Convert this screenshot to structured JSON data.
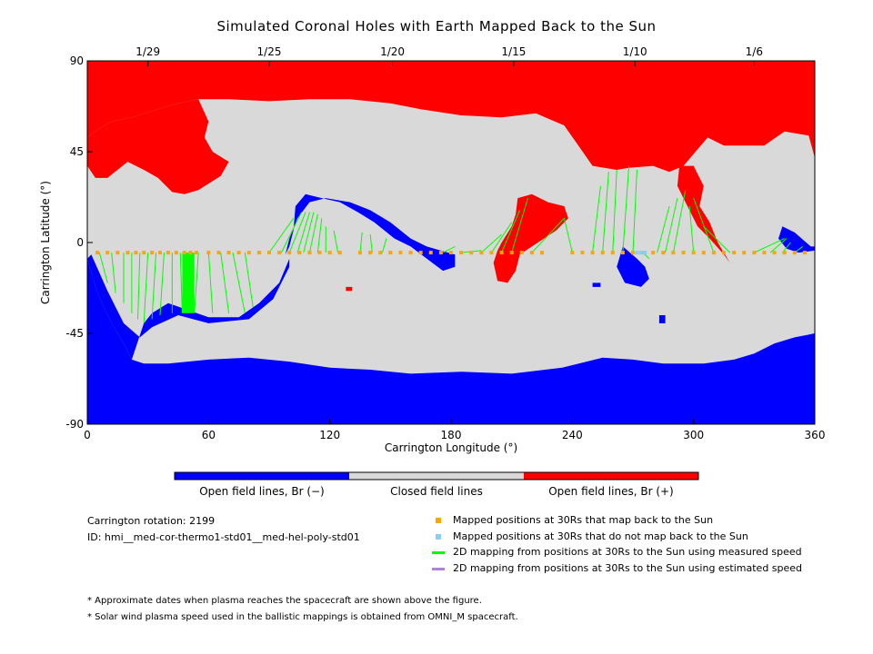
{
  "chart_data": {
    "type": "map",
    "title": "Simulated Coronal Holes with Earth Mapped Back to the Sun",
    "xlabel": "Carrington Longitude (°)",
    "ylabel": "Carrington Latitude (°)",
    "xlim": [
      0,
      360
    ],
    "ylim": [
      -90,
      90
    ],
    "x_ticks": [
      "0",
      "60",
      "120",
      "180",
      "240",
      "300",
      "360"
    ],
    "y_ticks": [
      "90",
      "45",
      "0",
      "-45",
      "-90"
    ],
    "top_axis_dates": [
      {
        "label": "1/29",
        "lon": 30
      },
      {
        "label": "1/25",
        "lon": 90
      },
      {
        "label": "1/20",
        "lon": 151
      },
      {
        "label": "1/15",
        "lon": 211
      },
      {
        "label": "1/10",
        "lon": 271
      },
      {
        "label": "1/6",
        "lon": 330
      }
    ],
    "colors": {
      "open_negative": "#0000ff",
      "closed": "#d9d9d9",
      "open_positive": "#ff0000",
      "mapped": "#ffa500",
      "not_mapped": "#87cefa",
      "measured_speed": "#00ff00",
      "estimated_speed": "#b07fe0"
    },
    "regions": {
      "north_positive_polar": [
        [
          0,
          90
        ],
        [
          360,
          90
        ],
        [
          360,
          42
        ],
        [
          357,
          53
        ],
        [
          345,
          55
        ],
        [
          335,
          48
        ],
        [
          315,
          48
        ],
        [
          307,
          52
        ],
        [
          295,
          38
        ],
        [
          288,
          35
        ],
        [
          280,
          38
        ],
        [
          268,
          37
        ],
        [
          262,
          36
        ],
        [
          250,
          38
        ],
        [
          243,
          48
        ],
        [
          236,
          58
        ],
        [
          222,
          64
        ],
        [
          205,
          62
        ],
        [
          185,
          63
        ],
        [
          165,
          66
        ],
        [
          150,
          69
        ],
        [
          130,
          71
        ],
        [
          110,
          71
        ],
        [
          90,
          70
        ],
        [
          70,
          71
        ],
        [
          55,
          71
        ],
        [
          45,
          69
        ],
        [
          35,
          66
        ],
        [
          22,
          62
        ],
        [
          12,
          60
        ],
        [
          5,
          56
        ],
        [
          0,
          52
        ]
      ],
      "positive_extension_west": [
        [
          0,
          52
        ],
        [
          5,
          56
        ],
        [
          12,
          60
        ],
        [
          22,
          62
        ],
        [
          35,
          66
        ],
        [
          45,
          69
        ],
        [
          55,
          71
        ],
        [
          60,
          60
        ],
        [
          58,
          52
        ],
        [
          62,
          45
        ],
        [
          70,
          40
        ],
        [
          66,
          33
        ],
        [
          55,
          26
        ],
        [
          48,
          24
        ],
        [
          42,
          25
        ],
        [
          35,
          32
        ],
        [
          28,
          36
        ],
        [
          20,
          40
        ],
        [
          15,
          36
        ],
        [
          10,
          32
        ],
        [
          4,
          32
        ],
        [
          0,
          38
        ]
      ],
      "positive_extension_east": [
        [
          293,
          38
        ],
        [
          300,
          38
        ],
        [
          305,
          28
        ],
        [
          303,
          18
        ],
        [
          308,
          10
        ],
        [
          312,
          0
        ],
        [
          318,
          -10
        ],
        [
          315,
          -6
        ],
        [
          308,
          2
        ],
        [
          302,
          8
        ],
        [
          296,
          20
        ],
        [
          292,
          28
        ]
      ],
      "equatorial_positive": [
        [
          213,
          22
        ],
        [
          220,
          24
        ],
        [
          228,
          20
        ],
        [
          236,
          18
        ],
        [
          238,
          12
        ],
        [
          232,
          6
        ],
        [
          226,
          2
        ],
        [
          220,
          -2
        ],
        [
          214,
          -6
        ],
        [
          212,
          -14
        ],
        [
          208,
          -20
        ],
        [
          203,
          -19
        ],
        [
          201,
          -10
        ],
        [
          203,
          -4
        ],
        [
          205,
          0
        ],
        [
          210,
          8
        ],
        [
          212,
          14
        ]
      ],
      "south_negative_polar": [
        [
          0,
          -90
        ],
        [
          360,
          -90
        ],
        [
          360,
          -45
        ],
        [
          350,
          -47
        ],
        [
          340,
          -50
        ],
        [
          330,
          -55
        ],
        [
          320,
          -58
        ],
        [
          305,
          -60
        ],
        [
          285,
          -60
        ],
        [
          270,
          -58
        ],
        [
          255,
          -57
        ],
        [
          235,
          -62
        ],
        [
          210,
          -65
        ],
        [
          185,
          -64
        ],
        [
          160,
          -65
        ],
        [
          140,
          -63
        ],
        [
          120,
          -62
        ],
        [
          100,
          -59
        ],
        [
          80,
          -57
        ],
        [
          60,
          -58
        ],
        [
          40,
          -60
        ],
        [
          28,
          -60
        ],
        [
          22,
          -58
        ],
        [
          18,
          -50
        ],
        [
          12,
          -40
        ],
        [
          5,
          -25
        ],
        [
          0,
          -8
        ]
      ],
      "negative_southwest_arm": [
        [
          0,
          -8
        ],
        [
          5,
          -25
        ],
        [
          12,
          -40
        ],
        [
          18,
          -50
        ],
        [
          22,
          -58
        ],
        [
          28,
          -40
        ],
        [
          32,
          -35
        ],
        [
          40,
          -30
        ],
        [
          60,
          -37
        ],
        [
          75,
          -37
        ],
        [
          85,
          -30
        ],
        [
          95,
          -20
        ],
        [
          100,
          -8
        ],
        [
          100,
          -12
        ],
        [
          92,
          -28
        ],
        [
          80,
          -38
        ],
        [
          60,
          -40
        ],
        [
          45,
          -36
        ],
        [
          32,
          -42
        ],
        [
          26,
          -47
        ],
        [
          18,
          -40
        ],
        [
          10,
          -24
        ],
        [
          6,
          -15
        ],
        [
          2,
          -6
        ]
      ],
      "negative_central_band": [
        [
          98,
          -6
        ],
        [
          100,
          -2
        ],
        [
          102,
          6
        ],
        [
          103,
          18
        ],
        [
          108,
          24
        ],
        [
          116,
          22
        ],
        [
          125,
          20
        ],
        [
          134,
          15
        ],
        [
          142,
          10
        ],
        [
          152,
          2
        ],
        [
          160,
          -2
        ],
        [
          168,
          -8
        ],
        [
          176,
          -14
        ],
        [
          182,
          -12
        ],
        [
          182,
          -6
        ],
        [
          175,
          -4
        ],
        [
          168,
          -2
        ],
        [
          160,
          2
        ],
        [
          150,
          10
        ],
        [
          140,
          16
        ],
        [
          130,
          20
        ],
        [
          118,
          22
        ],
        [
          110,
          20
        ],
        [
          104,
          12
        ],
        [
          100,
          2
        ]
      ],
      "negative_east_spot": [
        [
          265,
          -2
        ],
        [
          272,
          -8
        ],
        [
          276,
          -12
        ],
        [
          278,
          -18
        ],
        [
          274,
          -22
        ],
        [
          266,
          -20
        ],
        [
          262,
          -12
        ]
      ],
      "negative_east_edge": [
        [
          344,
          8
        ],
        [
          350,
          5
        ],
        [
          358,
          -2
        ],
        [
          360,
          -2
        ],
        [
          360,
          -4
        ],
        [
          352,
          -5
        ],
        [
          346,
          -3
        ],
        [
          342,
          2
        ]
      ],
      "negative_small_1": [
        [
          283,
          -36
        ],
        [
          286,
          -36
        ],
        [
          286,
          -40
        ],
        [
          283,
          -40
        ]
      ],
      "negative_small_2": [
        [
          250,
          -20
        ],
        [
          254,
          -20
        ],
        [
          254,
          -22
        ],
        [
          250,
          -22
        ]
      ],
      "positive_small": [
        [
          128,
          -22
        ],
        [
          131,
          -22
        ],
        [
          131,
          -24
        ],
        [
          128,
          -24
        ]
      ]
    },
    "mapped_positions_lat": -5,
    "mapped_points_lon": [
      5,
      10,
      15,
      20,
      24,
      28,
      32,
      36,
      40,
      44,
      48,
      51,
      54,
      60,
      65,
      70,
      75,
      80,
      85,
      90,
      95,
      100,
      105,
      110,
      115,
      120,
      125,
      135,
      140,
      145,
      150,
      155,
      160,
      165,
      170,
      175,
      180,
      185,
      190,
      195,
      200,
      205,
      210,
      215,
      220,
      225,
      240,
      245,
      250,
      255,
      260,
      265,
      270,
      275,
      280,
      285,
      290,
      295,
      300,
      305,
      310,
      315,
      320,
      325,
      330,
      335,
      340,
      345,
      350,
      355
    ],
    "not_mapped_points_lon": [
      272,
      274,
      276
    ],
    "fieldline_mappings": [
      {
        "from": 6,
        "to": [
          10,
          -20
        ]
      },
      {
        "from": 12,
        "to": [
          14,
          -25
        ]
      },
      {
        "from": 18,
        "to": [
          18,
          -30
        ]
      },
      {
        "from": 22,
        "to": [
          22,
          -35
        ]
      },
      {
        "from": 26,
        "to": [
          25,
          -38
        ]
      },
      {
        "from": 30,
        "to": [
          28,
          -40
        ]
      },
      {
        "from": 34,
        "to": [
          32,
          -38
        ]
      },
      {
        "from": 38,
        "to": [
          36,
          -36
        ]
      },
      {
        "from": 42,
        "to": [
          42,
          -35
        ]
      },
      {
        "from": 46,
        "to": [
          47,
          -35
        ]
      },
      {
        "from": 49,
        "to": [
          48,
          -35
        ]
      },
      {
        "from": 52,
        "to": [
          50,
          -35
        ]
      },
      {
        "from": 55,
        "to": [
          53,
          -35
        ]
      },
      {
        "from": 60,
        "to": [
          62,
          -35
        ]
      },
      {
        "from": 66,
        "to": [
          70,
          -35
        ]
      },
      {
        "from": 72,
        "to": [
          78,
          -35
        ]
      },
      {
        "from": 78,
        "to": [
          82,
          -32
        ]
      },
      {
        "from": 90,
        "to": [
          102,
          12
        ]
      },
      {
        "from": 96,
        "to": [
          106,
          15
        ]
      },
      {
        "from": 100,
        "to": [
          108,
          15
        ]
      },
      {
        "from": 104,
        "to": [
          110,
          15
        ]
      },
      {
        "from": 107,
        "to": [
          112,
          15
        ]
      },
      {
        "from": 110,
        "to": [
          114,
          14
        ]
      },
      {
        "from": 114,
        "to": [
          116,
          12
        ]
      },
      {
        "from": 118,
        "to": [
          118,
          8
        ]
      },
      {
        "from": 124,
        "to": [
          122,
          6
        ]
      },
      {
        "from": 135,
        "to": [
          136,
          5
        ]
      },
      {
        "from": 141,
        "to": [
          140,
          4
        ]
      },
      {
        "from": 146,
        "to": [
          148,
          2
        ]
      },
      {
        "from": 176,
        "to": [
          182,
          -2
        ]
      },
      {
        "from": 185,
        "to": [
          195,
          -4
        ]
      },
      {
        "from": 195,
        "to": [
          205,
          4
        ]
      },
      {
        "from": 200,
        "to": [
          210,
          10
        ]
      },
      {
        "from": 205,
        "to": [
          214,
          16
        ]
      },
      {
        "from": 210,
        "to": [
          218,
          22
        ]
      },
      {
        "from": 220,
        "to": [
          236,
          12
        ]
      },
      {
        "from": 240,
        "to": [
          236,
          12
        ]
      },
      {
        "from": 250,
        "to": [
          254,
          28
        ]
      },
      {
        "from": 255,
        "to": [
          258,
          35
        ]
      },
      {
        "from": 260,
        "to": [
          262,
          36
        ]
      },
      {
        "from": 265,
        "to": [
          268,
          38
        ]
      },
      {
        "from": 270,
        "to": [
          272,
          36
        ]
      },
      {
        "from": 275,
        "to": [
          278,
          -8
        ]
      },
      {
        "from": 282,
        "to": [
          288,
          18
        ]
      },
      {
        "from": 286,
        "to": [
          292,
          22
        ]
      },
      {
        "from": 290,
        "to": [
          296,
          26
        ]
      },
      {
        "from": 300,
        "to": [
          298,
          18
        ]
      },
      {
        "from": 310,
        "to": [
          300,
          22
        ]
      },
      {
        "from": 318,
        "to": [
          305,
          8
        ]
      },
      {
        "from": 330,
        "to": [
          345,
          2
        ]
      },
      {
        "from": 338,
        "to": [
          346,
          2
        ]
      },
      {
        "from": 344,
        "to": [
          348,
          0
        ]
      },
      {
        "from": 350,
        "to": [
          354,
          -2
        ]
      }
    ]
  },
  "colorbar": {
    "labels": [
      "Open field lines, Br (−)",
      "Closed field lines",
      "Open field lines, Br (+)"
    ]
  },
  "info": {
    "rotation": "Carrington rotation: 2199",
    "id": "ID: hmi__med-cor-thermo1-std01__med-hel-poly-std01"
  },
  "legend": {
    "mapped": "Mapped positions at 30Rs that map back to the Sun",
    "not_mapped": "Mapped positions at 30Rs that do not map back to the Sun",
    "measured": "2D mapping from positions at 30Rs to the Sun using measured speed",
    "estimated": "2D mapping from positions at 30Rs to the Sun using estimated speed"
  },
  "footnotes": [
    "* Approximate dates when plasma reaches the spacecraft are shown above the figure.",
    "* Solar wind plasma speed used in the ballistic mappings is obtained from OMNI_M spacecraft."
  ]
}
